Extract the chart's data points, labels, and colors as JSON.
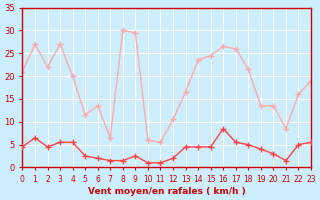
{
  "hours": [
    0,
    1,
    2,
    3,
    4,
    5,
    6,
    7,
    8,
    9,
    10,
    11,
    12,
    13,
    14,
    15,
    16,
    17,
    18,
    19,
    20,
    21,
    22,
    23
  ],
  "wind_avg": [
    4.5,
    6.5,
    4.5,
    5.5,
    5.5,
    2.5,
    2,
    1.5,
    1.5,
    2.5,
    1,
    1,
    2,
    4.5,
    4.5,
    4.5,
    8.5,
    5.5,
    5,
    4,
    3,
    1.5,
    5,
    5.5
  ],
  "wind_gust": [
    21,
    27,
    22,
    27,
    20,
    11.5,
    13.5,
    6.5,
    30,
    29.5,
    6,
    5.5,
    10.5,
    16.5,
    23.5,
    24.5,
    26.5,
    26,
    21.5,
    13.5,
    13.5,
    8.5,
    16,
    19
  ],
  "bg_color": "#cceeff",
  "grid_color": "#ffffff",
  "line_avg_color": "#ff4444",
  "line_gust_color": "#ffaaaa",
  "xlabel": "Vent moyen/en rafales ( km/h )",
  "ylim": [
    0,
    35
  ],
  "yticks": [
    0,
    5,
    10,
    15,
    20,
    25,
    30,
    35
  ],
  "xlim": [
    0,
    23
  ]
}
